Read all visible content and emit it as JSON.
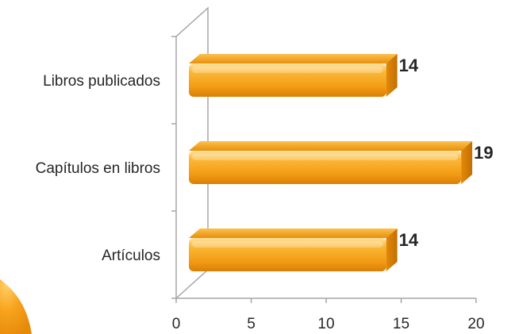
{
  "chart_data": {
    "type": "bar",
    "orientation": "horizontal",
    "style": "3d",
    "categories": [
      "Libros publicados",
      "Capítulos en libros",
      "Artículos"
    ],
    "values": [
      14,
      19,
      14
    ],
    "data_labels": [
      "14",
      "19",
      "14"
    ],
    "title": "",
    "xlabel": "",
    "ylabel": "",
    "xlim": [
      0,
      20
    ],
    "x_ticks": [
      0,
      5,
      10,
      15,
      20
    ],
    "x_tick_labels": [
      "0",
      "5",
      "10",
      "15",
      "20"
    ],
    "grid": false,
    "legend": "none",
    "bar_color": "#f6a31c",
    "bar_highlight_color": "#ffd27a",
    "bar_shadow_color": "#c87a08"
  },
  "colors": {
    "axis": "#a6a6a6",
    "text": "#262626",
    "decoration": "#f59b16"
  }
}
